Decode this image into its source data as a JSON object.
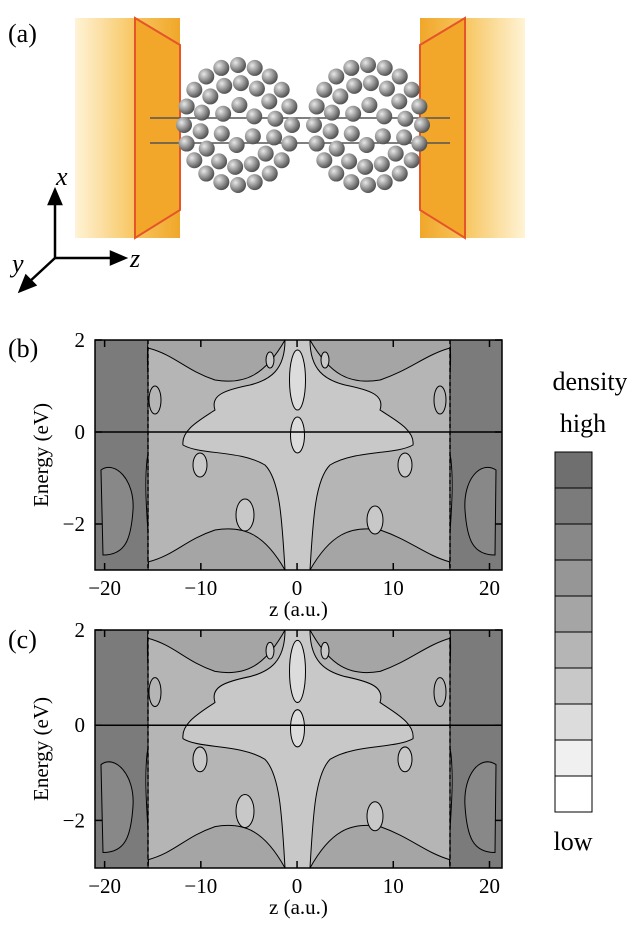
{
  "panel_labels": [
    "(a)",
    "(b)",
    "(c)"
  ],
  "axis_triad": {
    "x": "x",
    "y": "y",
    "z": "z"
  },
  "plots": [
    {
      "xlabel": "z (a.u.)",
      "ylabel": "Energy (eV)",
      "xlim": [
        -21,
        21.3
      ],
      "ylim": [
        -3,
        2
      ],
      "xticks": [
        {
          "value": -20,
          "label": "−20"
        },
        {
          "value": -10,
          "label": "−10"
        },
        0,
        10,
        20
      ],
      "yticks": [
        2,
        0,
        {
          "value": -2,
          "label": "−2"
        }
      ]
    },
    {
      "xlabel": "z (a.u.)",
      "ylabel": "Energy (eV)",
      "xlim": [
        -21,
        21.3
      ],
      "ylim": [
        -3,
        2
      ],
      "xticks": [
        {
          "value": -20,
          "label": "−20"
        },
        {
          "value": -10,
          "label": "−10"
        },
        0,
        10,
        20
      ],
      "yticks": [
        2,
        0,
        {
          "value": -2,
          "label": "−2"
        }
      ]
    }
  ],
  "colorbar": {
    "title": "density",
    "high_label": "high",
    "low_label": "low",
    "colors": [
      "#6f6f6f",
      "#7b7b7b",
      "#888888",
      "#969696",
      "#a5a5a5",
      "#b5b5b5",
      "#c8c8c8",
      "#dcdcdc",
      "#f0f0f0",
      "#ffffff"
    ]
  }
}
